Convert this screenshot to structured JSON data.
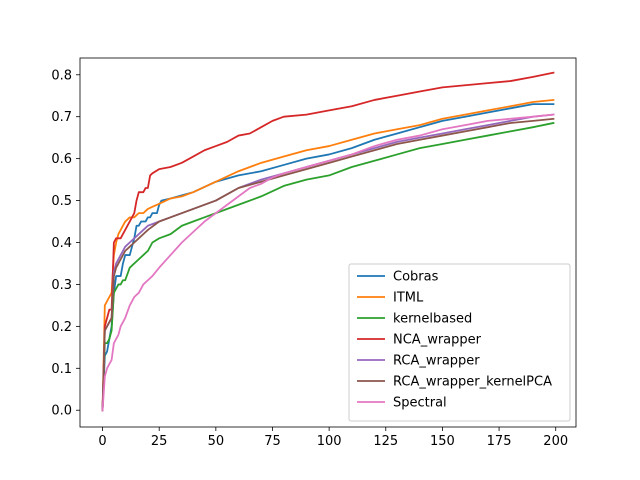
{
  "chart_data": {
    "type": "line",
    "title": "",
    "xlabel": "",
    "ylabel": "",
    "xlim": [
      -9.95,
      208.95
    ],
    "ylim": [
      -0.04,
      0.84
    ],
    "xticks": [
      0,
      25,
      50,
      75,
      100,
      125,
      150,
      175,
      200
    ],
    "yticks": [
      0.0,
      0.1,
      0.2,
      0.3,
      0.4,
      0.5,
      0.6,
      0.7,
      0.8
    ],
    "xtick_labels": [
      "0",
      "25",
      "50",
      "75",
      "100",
      "125",
      "150",
      "175",
      "200"
    ],
    "ytick_labels": [
      "0.0",
      "0.1",
      "0.2",
      "0.3",
      "0.4",
      "0.5",
      "0.6",
      "0.7",
      "0.8"
    ],
    "grid": false,
    "legend_position": "lower-right",
    "series": [
      {
        "name": "Cobras",
        "color": "#1f77b4",
        "x": [
          0,
          1,
          2,
          3,
          4,
          5,
          6,
          7,
          8,
          9,
          10,
          11,
          12,
          13,
          14,
          15,
          16,
          17,
          18,
          19,
          20,
          21,
          22,
          23,
          24,
          25,
          26,
          30,
          40,
          50,
          60,
          70,
          80,
          90,
          100,
          110,
          120,
          130,
          140,
          150,
          160,
          170,
          180,
          190,
          199
        ],
        "y": [
          0.0,
          0.13,
          0.14,
          0.17,
          0.2,
          0.28,
          0.32,
          0.32,
          0.32,
          0.35,
          0.37,
          0.37,
          0.37,
          0.39,
          0.41,
          0.44,
          0.44,
          0.45,
          0.45,
          0.45,
          0.46,
          0.46,
          0.47,
          0.47,
          0.47,
          0.49,
          0.5,
          0.505,
          0.52,
          0.545,
          0.56,
          0.57,
          0.585,
          0.6,
          0.61,
          0.625,
          0.645,
          0.66,
          0.675,
          0.69,
          0.7,
          0.71,
          0.72,
          0.73,
          0.73
        ]
      },
      {
        "name": "ITML",
        "color": "#ff7f0e",
        "x": [
          0,
          1,
          2,
          3,
          4,
          5,
          6,
          7,
          8,
          9,
          10,
          12,
          14,
          16,
          18,
          20,
          22,
          24,
          26,
          28,
          30,
          35,
          40,
          50,
          60,
          70,
          80,
          90,
          100,
          110,
          120,
          130,
          140,
          150,
          160,
          170,
          180,
          190,
          199
        ],
        "y": [
          0.0,
          0.25,
          0.26,
          0.27,
          0.28,
          0.37,
          0.4,
          0.42,
          0.43,
          0.44,
          0.45,
          0.46,
          0.46,
          0.47,
          0.47,
          0.48,
          0.485,
          0.49,
          0.495,
          0.5,
          0.505,
          0.51,
          0.52,
          0.545,
          0.57,
          0.59,
          0.605,
          0.62,
          0.63,
          0.645,
          0.66,
          0.67,
          0.68,
          0.695,
          0.705,
          0.715,
          0.725,
          0.735,
          0.74
        ]
      },
      {
        "name": "kernelbased",
        "color": "#2ca02c",
        "x": [
          0,
          1,
          2,
          3,
          4,
          5,
          6,
          7,
          8,
          9,
          10,
          12,
          14,
          16,
          18,
          20,
          22,
          25,
          30,
          35,
          40,
          45,
          50,
          60,
          70,
          80,
          90,
          100,
          110,
          120,
          130,
          140,
          150,
          160,
          170,
          180,
          190,
          199
        ],
        "y": [
          0.0,
          0.16,
          0.16,
          0.17,
          0.19,
          0.28,
          0.29,
          0.3,
          0.3,
          0.31,
          0.31,
          0.34,
          0.35,
          0.36,
          0.37,
          0.38,
          0.4,
          0.41,
          0.42,
          0.44,
          0.45,
          0.46,
          0.47,
          0.49,
          0.51,
          0.535,
          0.55,
          0.56,
          0.58,
          0.595,
          0.61,
          0.625,
          0.635,
          0.645,
          0.655,
          0.665,
          0.675,
          0.685
        ]
      },
      {
        "name": "NCA_wrapper",
        "color": "#d62728",
        "x": [
          0,
          1,
          2,
          3,
          4,
          5,
          6,
          7,
          8,
          9,
          10,
          11,
          12,
          13,
          14,
          15,
          16,
          17,
          18,
          19,
          20,
          21,
          22,
          25,
          30,
          35,
          40,
          45,
          50,
          55,
          60,
          65,
          70,
          75,
          80,
          90,
          100,
          110,
          120,
          130,
          140,
          150,
          160,
          170,
          180,
          190,
          199
        ],
        "y": [
          0.0,
          0.2,
          0.22,
          0.24,
          0.24,
          0.4,
          0.41,
          0.41,
          0.41,
          0.42,
          0.43,
          0.44,
          0.45,
          0.46,
          0.47,
          0.5,
          0.52,
          0.52,
          0.52,
          0.53,
          0.53,
          0.56,
          0.565,
          0.575,
          0.58,
          0.59,
          0.605,
          0.62,
          0.63,
          0.64,
          0.655,
          0.66,
          0.675,
          0.69,
          0.7,
          0.705,
          0.715,
          0.725,
          0.74,
          0.75,
          0.76,
          0.77,
          0.775,
          0.78,
          0.785,
          0.795,
          0.805
        ]
      },
      {
        "name": "RCA_wrapper",
        "color": "#9467bd",
        "x": [
          0,
          1,
          2,
          3,
          4,
          5,
          6,
          7,
          8,
          9,
          10,
          12,
          14,
          16,
          18,
          20,
          25,
          30,
          40,
          50,
          60,
          70,
          80,
          90,
          100,
          110,
          120,
          130,
          140,
          150,
          160,
          170,
          180,
          190,
          199
        ],
        "y": [
          0.0,
          0.19,
          0.2,
          0.21,
          0.22,
          0.33,
          0.35,
          0.36,
          0.37,
          0.38,
          0.39,
          0.4,
          0.41,
          0.42,
          0.43,
          0.44,
          0.45,
          0.46,
          0.48,
          0.5,
          0.53,
          0.55,
          0.565,
          0.58,
          0.595,
          0.61,
          0.625,
          0.64,
          0.65,
          0.66,
          0.67,
          0.68,
          0.69,
          0.7,
          0.705
        ]
      },
      {
        "name": "RCA_wrapper_kernelPCA",
        "color": "#8c564b",
        "x": [
          0,
          1,
          2,
          3,
          4,
          5,
          6,
          7,
          8,
          9,
          10,
          12,
          14,
          16,
          18,
          20,
          25,
          30,
          40,
          50,
          60,
          70,
          80,
          90,
          100,
          110,
          120,
          130,
          140,
          150,
          160,
          170,
          180,
          190,
          199
        ],
        "y": [
          0.0,
          0.19,
          0.2,
          0.21,
          0.22,
          0.32,
          0.34,
          0.35,
          0.36,
          0.37,
          0.38,
          0.39,
          0.4,
          0.41,
          0.42,
          0.43,
          0.45,
          0.46,
          0.48,
          0.5,
          0.53,
          0.545,
          0.56,
          0.575,
          0.59,
          0.605,
          0.62,
          0.635,
          0.645,
          0.655,
          0.665,
          0.675,
          0.685,
          0.69,
          0.695
        ]
      },
      {
        "name": "Spectral",
        "color": "#e377c2",
        "x": [
          0,
          1,
          2,
          3,
          4,
          5,
          6,
          7,
          8,
          9,
          10,
          12,
          14,
          16,
          18,
          20,
          22,
          25,
          30,
          35,
          40,
          45,
          50,
          55,
          60,
          65,
          70,
          75,
          80,
          90,
          100,
          110,
          120,
          130,
          140,
          150,
          160,
          170,
          180,
          190,
          199
        ],
        "y": [
          0.0,
          0.08,
          0.1,
          0.11,
          0.12,
          0.16,
          0.17,
          0.18,
          0.2,
          0.21,
          0.22,
          0.25,
          0.27,
          0.28,
          0.3,
          0.31,
          0.32,
          0.34,
          0.37,
          0.4,
          0.425,
          0.45,
          0.47,
          0.49,
          0.51,
          0.53,
          0.54,
          0.555,
          0.565,
          0.58,
          0.595,
          0.61,
          0.63,
          0.645,
          0.655,
          0.67,
          0.68,
          0.69,
          0.695,
          0.7,
          0.705
        ]
      }
    ]
  }
}
